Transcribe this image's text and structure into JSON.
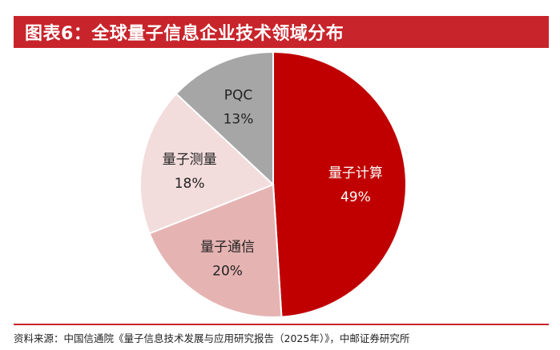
{
  "title": "图表6：全球量子信息企业技术领域分布",
  "source": "资料来源：中国信通院《量子信息技术发展与应用研究报告（2025年）》，中邮证券研究所",
  "chart_data": {
    "type": "pie",
    "title": "图表6：全球量子信息企业技术领域分布",
    "start_angle_deg": 0,
    "direction": "clockwise",
    "slices": [
      {
        "name": "量子计算",
        "value": 49,
        "label": "49%",
        "color": "#c00000",
        "text_color": "#ffffff"
      },
      {
        "name": "量子通信",
        "value": 20,
        "label": "20%",
        "color": "#e6b3b3",
        "text_color": "#222222"
      },
      {
        "name": "量子测量",
        "value": 18,
        "label": "18%",
        "color": "#f3dcdc",
        "text_color": "#222222"
      },
      {
        "name": "PQC",
        "value": 13,
        "label": "13%",
        "color": "#a6a6a6",
        "text_color": "#222222"
      }
    ]
  }
}
